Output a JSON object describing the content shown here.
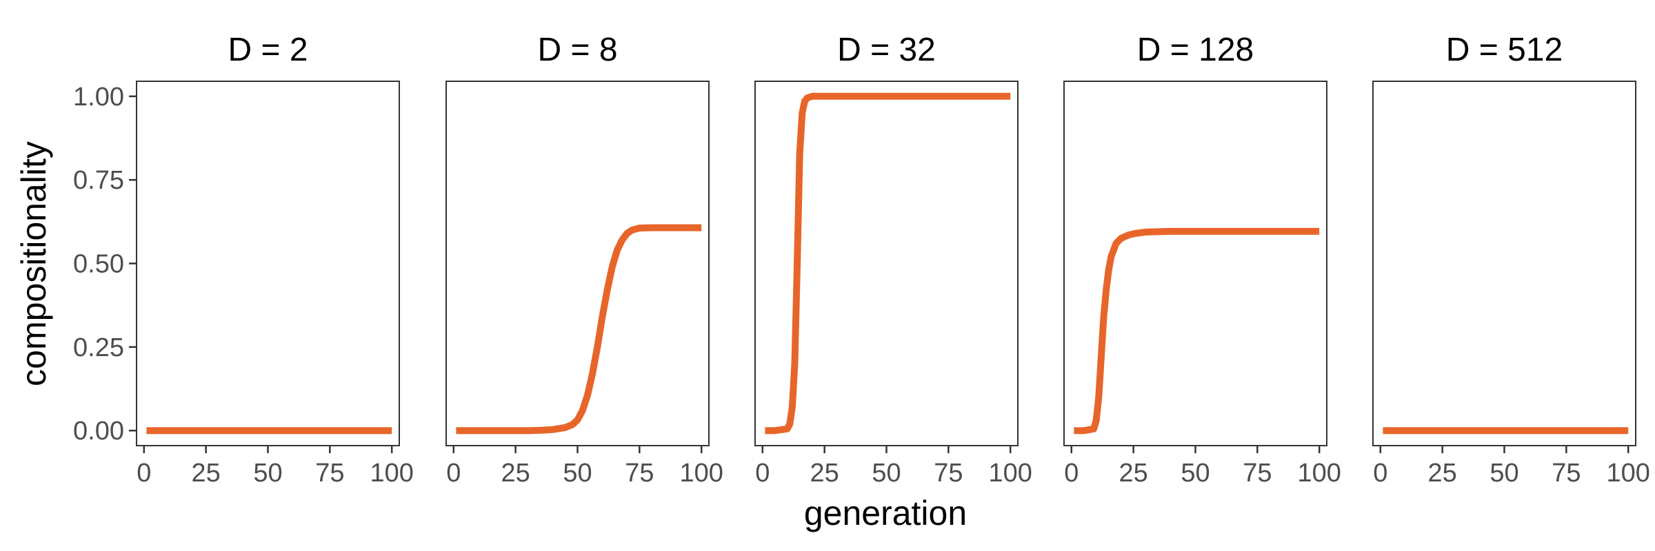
{
  "chart_data": {
    "type": "line",
    "xlabel": "generation",
    "ylabel": "compositionality",
    "xlim": [
      -3,
      103
    ],
    "ylim": [
      -0.045,
      1.045
    ],
    "x_ticks": [
      0,
      25,
      50,
      75,
      100
    ],
    "x_tick_labels": [
      "0",
      "25",
      "50",
      "75",
      "100"
    ],
    "y_ticks": [
      0,
      0.25,
      0.5,
      0.75,
      1
    ],
    "y_tick_labels": [
      "0.00",
      "0.25",
      "0.50",
      "0.75",
      "1.00"
    ],
    "grid": false,
    "legend": "none",
    "line_color": "#E8652A",
    "panels": [
      {
        "title": "D = 2",
        "x": [
          1,
          100
        ],
        "y": [
          0,
          0
        ]
      },
      {
        "title": "D = 8",
        "x": [
          1,
          10,
          20,
          30,
          35,
          40,
          45,
          48,
          50,
          52,
          54,
          56,
          58,
          60,
          62,
          64,
          66,
          68,
          70,
          72,
          75,
          80,
          90,
          100
        ],
        "y": [
          0,
          0,
          0,
          0,
          0.001,
          0.003,
          0.009,
          0.018,
          0.032,
          0.06,
          0.105,
          0.17,
          0.25,
          0.34,
          0.42,
          0.49,
          0.54,
          0.57,
          0.59,
          0.6,
          0.606,
          0.607,
          0.607,
          0.607
        ]
      },
      {
        "title": "D = 32",
        "x": [
          1,
          5,
          10,
          11,
          12,
          13,
          14,
          15,
          16,
          17,
          18,
          20,
          25,
          50,
          100
        ],
        "y": [
          0,
          0,
          0.005,
          0.02,
          0.07,
          0.2,
          0.5,
          0.83,
          0.95,
          0.985,
          0.995,
          1.0,
          1.0,
          1.0,
          1.0
        ]
      },
      {
        "title": "D = 128",
        "x": [
          1,
          5,
          9,
          10,
          11,
          12,
          13,
          14,
          15,
          16,
          18,
          20,
          23,
          26,
          30,
          35,
          40,
          50,
          100
        ],
        "y": [
          0,
          0,
          0.005,
          0.03,
          0.1,
          0.22,
          0.34,
          0.42,
          0.48,
          0.52,
          0.56,
          0.575,
          0.585,
          0.59,
          0.594,
          0.595,
          0.596,
          0.596,
          0.596
        ]
      },
      {
        "title": "D = 512",
        "x": [
          1,
          100
        ],
        "y": [
          0,
          0
        ]
      }
    ]
  }
}
